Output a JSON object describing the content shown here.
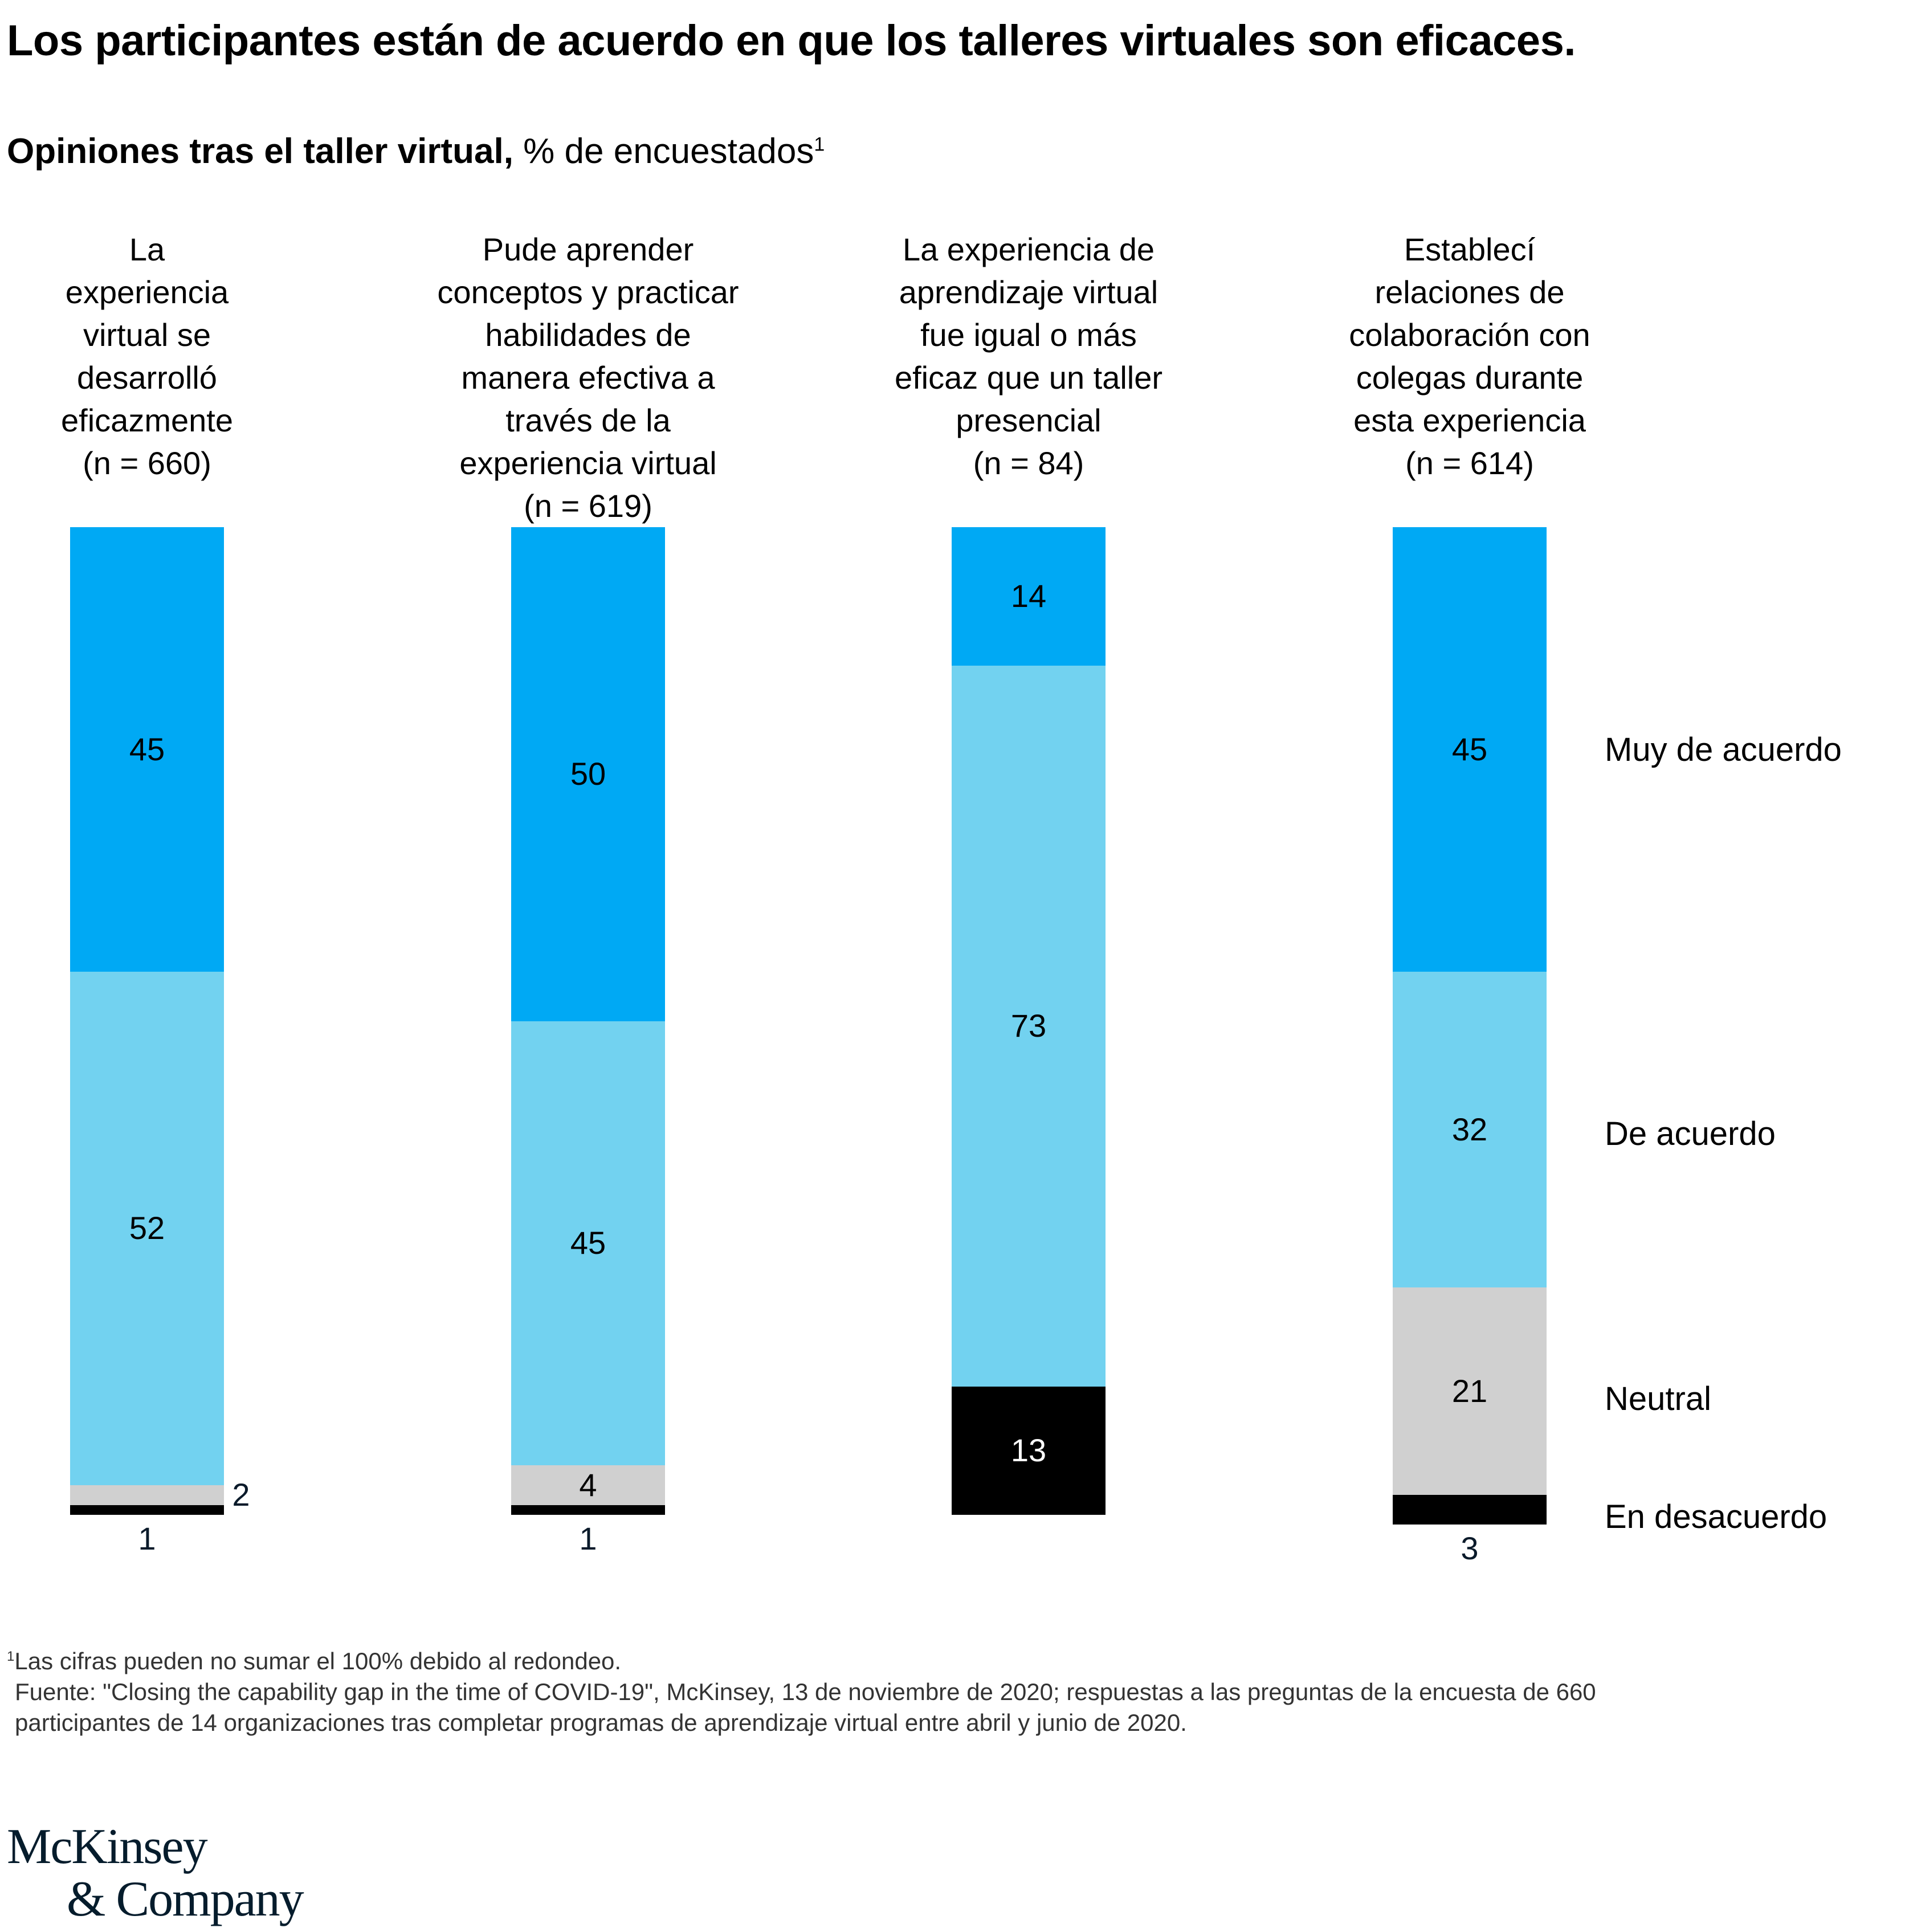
{
  "title": "Los participantes están de acuerdo en que los talleres virtuales son eficaces.",
  "subtitle": {
    "bold": "Opiniones tras el taller virtual,",
    "normal": " % de encuestados",
    "sup": "1"
  },
  "chart_data": {
    "type": "bar",
    "stacked": true,
    "orientation": "vertical",
    "categories": [
      "La experiencia virtual se desarrolló eficazmente (n = 660)",
      "Pude aprender conceptos y practicar habilidades de manera efectiva a través de la experiencia virtual (n = 619)",
      "La experiencia de aprendizaje virtual fue igual o más eficaz que un taller presencial (n = 84)",
      "Establecí relaciones de colaboración con colegas durante esta experiencia (n = 614)"
    ],
    "category_lines": [
      [
        "La",
        "experiencia",
        "virtual se",
        "desarrolló",
        "eficazmente",
        "(n = 660)"
      ],
      [
        "Pude aprender",
        "conceptos y practicar",
        "habilidades de",
        "manera efectiva a",
        "través de la",
        "experiencia virtual",
        "(n = 619)"
      ],
      [
        "La experiencia de",
        "aprendizaje virtual",
        "fue igual o más",
        "eficaz que un taller",
        "presencial",
        "(n = 84)"
      ],
      [
        "Establecí",
        "relaciones de",
        "colaboración con",
        "colegas durante",
        "esta experiencia",
        "(n = 614)"
      ]
    ],
    "series": [
      {
        "name": "Muy de acuerdo",
        "color": "#00A9F4",
        "values": [
          45,
          50,
          14,
          45
        ]
      },
      {
        "name": "De acuerdo",
        "color": "#72D2F0",
        "values": [
          52,
          45,
          73,
          32
        ]
      },
      {
        "name": "Neutral",
        "color": "#D0D0D0",
        "values": [
          2,
          4,
          0,
          21
        ]
      },
      {
        "name": "En desacuerdo",
        "color": "#000000",
        "values": [
          1,
          1,
          13,
          3
        ]
      }
    ],
    "ylim": [
      0,
      100
    ],
    "legend": "right"
  },
  "footnotes": {
    "note_sup": "1",
    "note": "Las cifras pueden no sumar el 100% debido al redondeo.",
    "source1": "Fuente: \"Closing the capability gap in the time of COVID-19\", McKinsey, 13 de noviembre de 2020; respuestas a las preguntas de la encuesta de 660",
    "source2": "participantes de 14 organizaciones tras completar programas de aprendizaje virtual entre abril y junio de 2020."
  },
  "logo": {
    "line1": "McKinsey",
    "line2": "& Company"
  }
}
